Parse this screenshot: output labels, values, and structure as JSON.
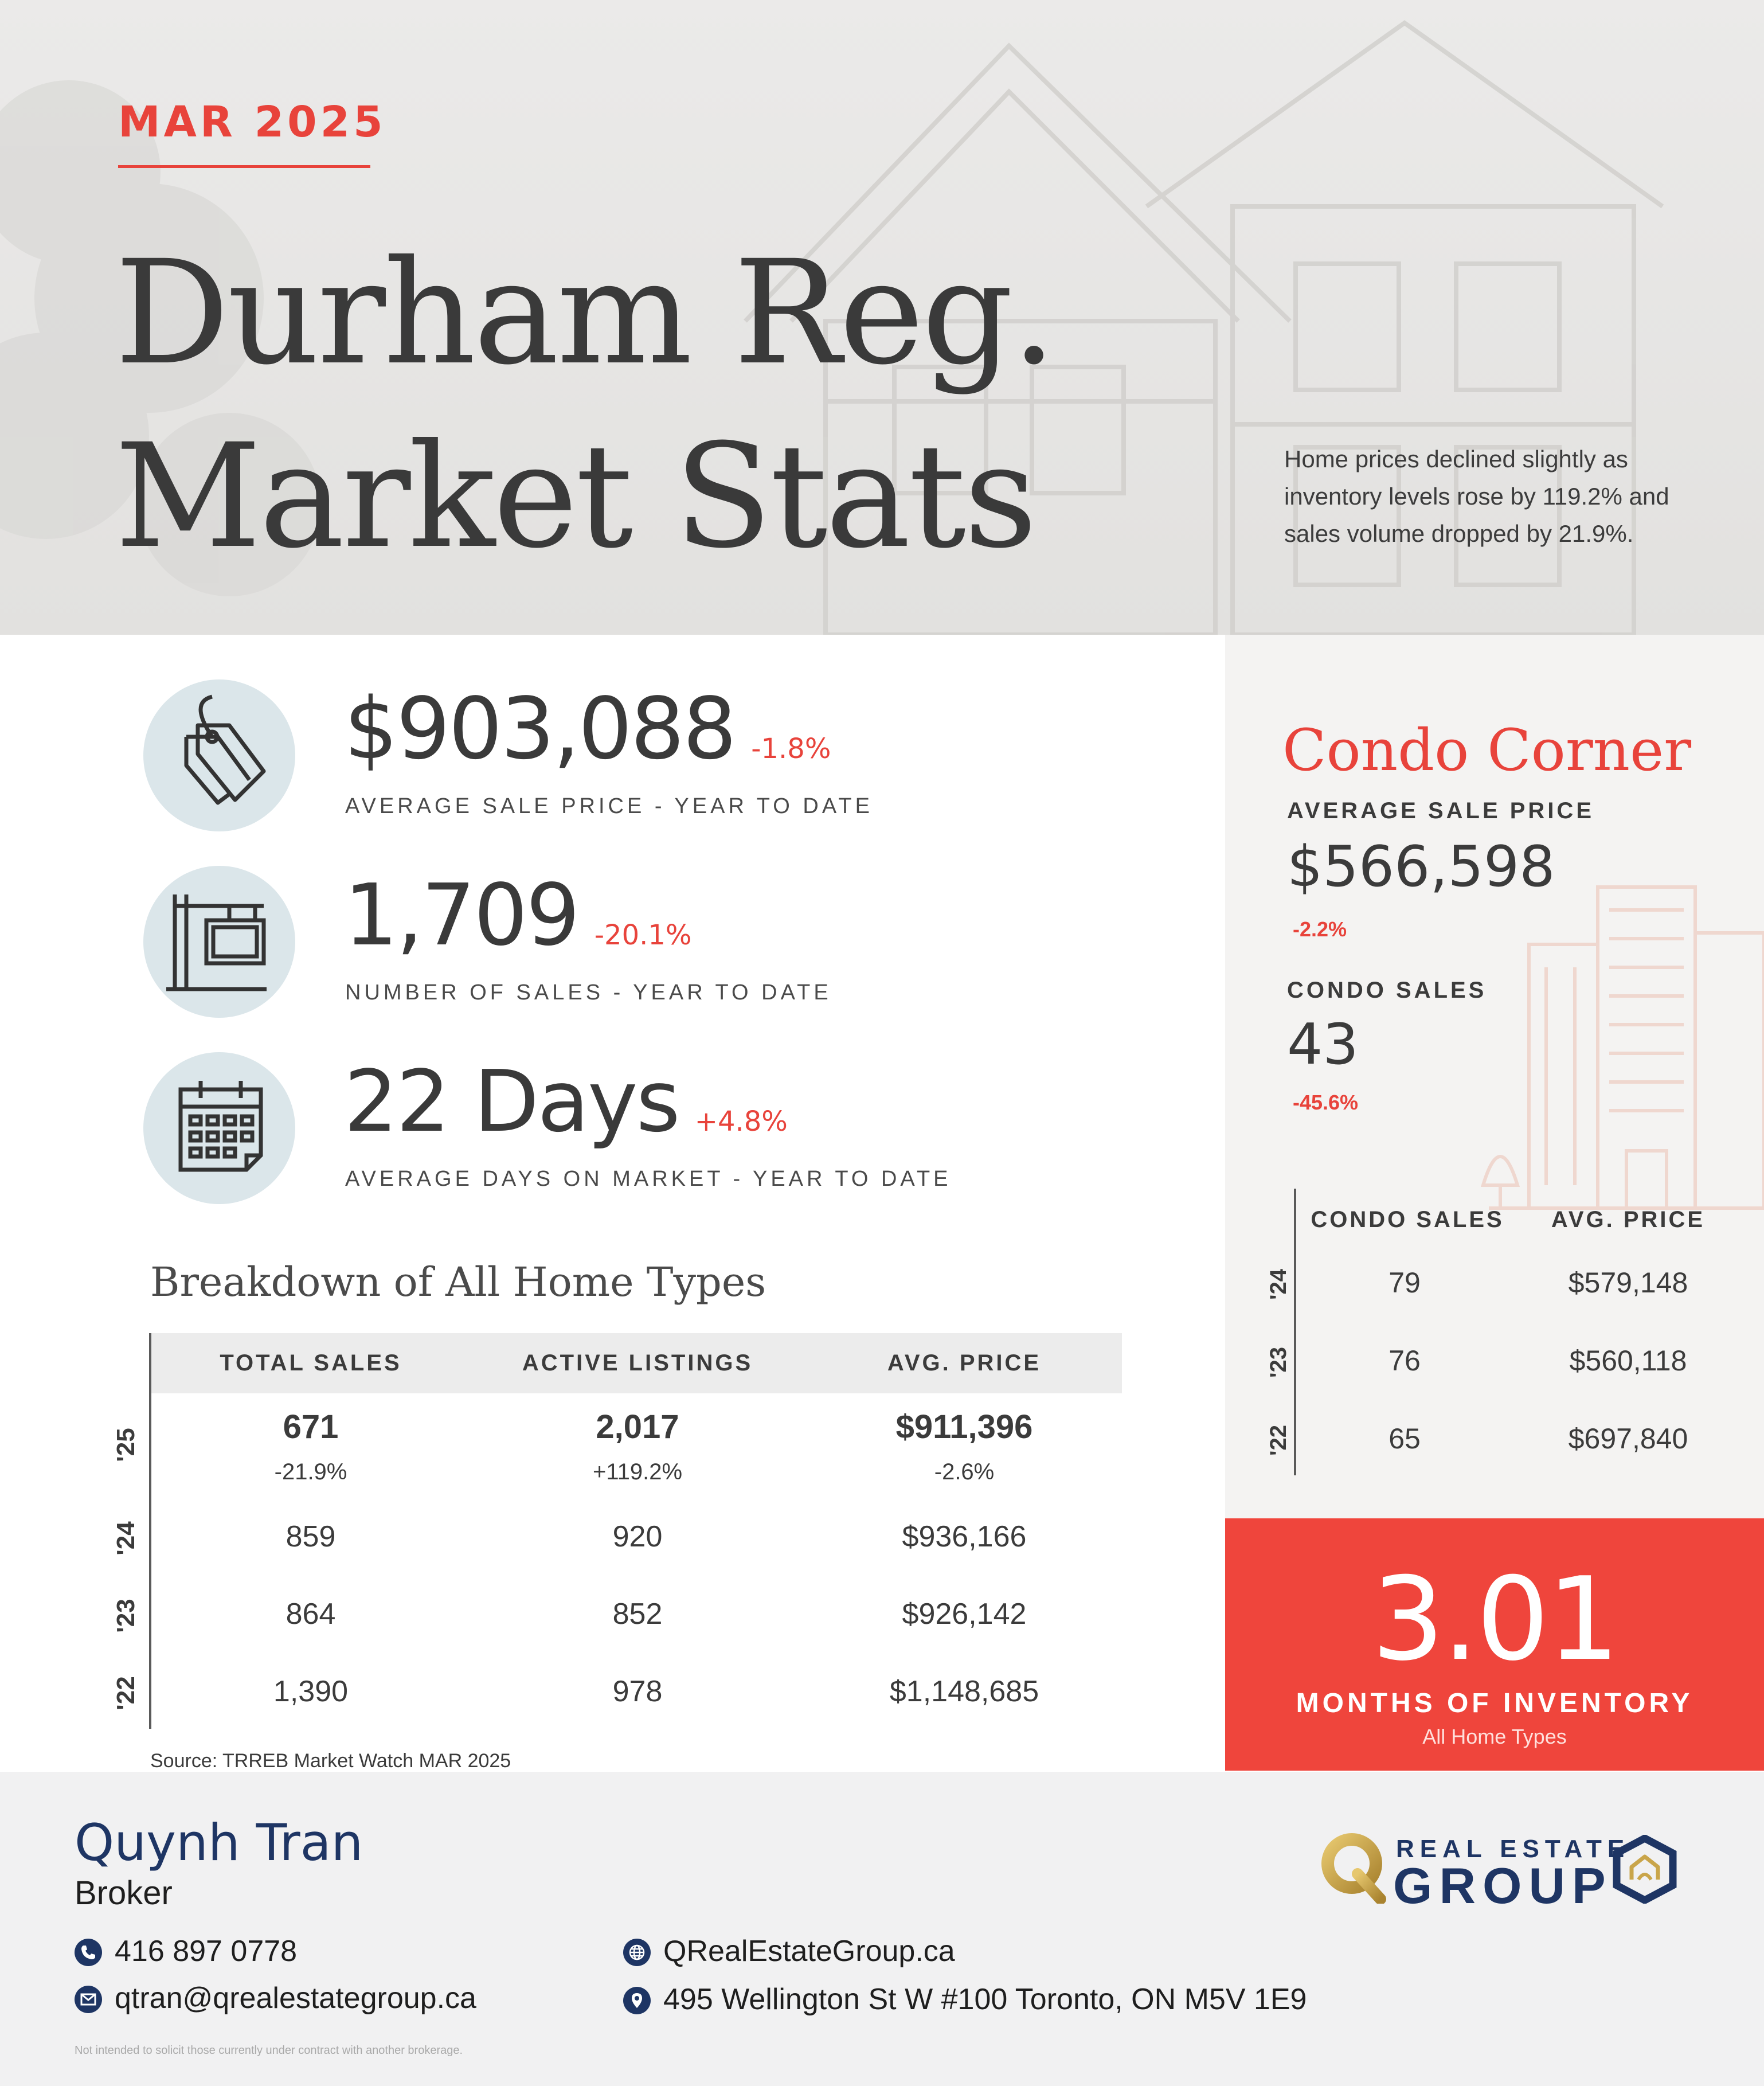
{
  "header": {
    "month": "MAR 2025",
    "title_line1": "Durham Reg.",
    "title_line2": "Market Stats",
    "summary": "Home prices declined slightly as inventory levels rose by 119.2% and sales volume dropped by 21.9%."
  },
  "stats": [
    {
      "icon": "price-tag-icon",
      "value": "$903,088",
      "change": "-1.8%",
      "label": "AVERAGE SALE PRICE - YEAR TO DATE"
    },
    {
      "icon": "for-sale-sign-icon",
      "value": "1,709",
      "change": "-20.1%",
      "label": "NUMBER OF SALES - YEAR TO DATE"
    },
    {
      "icon": "calendar-icon",
      "value": "22 Days",
      "change": "+4.8%",
      "label": "AVERAGE DAYS ON MARKET - YEAR TO DATE"
    }
  ],
  "breakdown": {
    "title": "Breakdown of All Home Types",
    "columns": [
      "TOTAL SALES",
      "ACTIVE LISTINGS",
      "AVG. PRICE"
    ],
    "rows": [
      {
        "year": "'25",
        "total_sales": "671",
        "total_sales_change": "-21.9%",
        "active_listings": "2,017",
        "active_listings_change": "+119.2%",
        "avg_price": "$911,396",
        "avg_price_change": "-2.6%"
      },
      {
        "year": "'24",
        "total_sales": "859",
        "active_listings": "920",
        "avg_price": "$936,166"
      },
      {
        "year": "'23",
        "total_sales": "864",
        "active_listings": "852",
        "avg_price": "$926,142"
      },
      {
        "year": "'22",
        "total_sales": "1,390",
        "active_listings": "978",
        "avg_price": "$1,148,685"
      }
    ],
    "source": "Source: TRREB Market Watch MAR 2025"
  },
  "condo": {
    "title": "Condo Corner",
    "avg_price_label": "AVERAGE SALE PRICE",
    "avg_price_value": "$566,598",
    "avg_price_change": "-2.2%",
    "sales_label": "CONDO SALES",
    "sales_value": "43",
    "sales_change": "-45.6%",
    "table_columns": [
      "CONDO SALES",
      "AVG. PRICE"
    ],
    "table_rows": [
      {
        "year": "'24",
        "sales": "79",
        "avg_price": "$579,148"
      },
      {
        "year": "'23",
        "sales": "76",
        "avg_price": "$560,118"
      },
      {
        "year": "'22",
        "sales": "65",
        "avg_price": "$697,840"
      }
    ]
  },
  "inventory": {
    "value": "3.01",
    "label": "MONTHS OF INVENTORY",
    "sublabel": "All Home Types"
  },
  "footer": {
    "agent_name": "Quynh Tran",
    "agent_title": "Broker",
    "phone": "416 897 0778",
    "email": "qtran@qrealestategroup.ca",
    "website": "QRealEstateGroup.ca",
    "address": "495 Wellington St W #100 Toronto, ON M5V 1E9",
    "disclaimer": "Not intended to solicit those currently under contract with another brokerage.",
    "logo_line1": "REAL ESTATE",
    "logo_line2": "GROUP"
  },
  "colors": {
    "accent_red": "#e8433b",
    "navy": "#1e3564",
    "icon_circle": "#dbe6ea",
    "gold": "#c9a54a"
  }
}
